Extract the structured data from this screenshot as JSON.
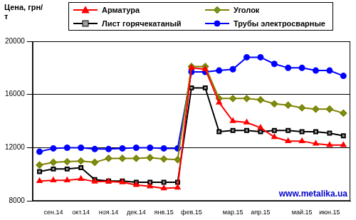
{
  "chart_data": {
    "type": "line",
    "y_label": "Цена, грн/т",
    "categories": [
      null,
      "сен.14",
      null,
      "окт.14",
      null,
      "ноя.14",
      null,
      "дек.14",
      null,
      "янв.15",
      null,
      "фев.15",
      null,
      null,
      "мар.15",
      null,
      "апр.15",
      null,
      null,
      "май.15",
      null,
      "июн.15",
      null
    ],
    "series": [
      {
        "name": "Арматура",
        "color": "#ff0000",
        "marker": "triangle",
        "values": [
          9500,
          9550,
          9550,
          9650,
          9450,
          9450,
          9400,
          9200,
          9100,
          8950,
          9000,
          18000,
          17900,
          15400,
          14000,
          13900,
          13500,
          12800,
          12500,
          12500,
          12300,
          12200,
          12200
        ]
      },
      {
        "name": "Уголок",
        "color": "#808000",
        "marker": "diamond",
        "values": [
          10700,
          10900,
          10950,
          11000,
          10900,
          11200,
          11200,
          11200,
          11250,
          11150,
          11100,
          18100,
          18100,
          15700,
          15700,
          15700,
          15600,
          15300,
          15200,
          15000,
          14900,
          14900,
          14600
        ]
      },
      {
        "name": "Лист горячекатаный",
        "color": "#000000",
        "marker": "square",
        "values": [
          10200,
          10400,
          10400,
          10500,
          9600,
          9500,
          9500,
          9400,
          9400,
          9400,
          9400,
          16500,
          16500,
          13200,
          13300,
          13300,
          13200,
          13300,
          13300,
          13200,
          13200,
          13100,
          12900
        ]
      },
      {
        "name": "Трубы электросварные",
        "color": "#0000ff",
        "marker": "circle",
        "values": [
          11700,
          11950,
          12000,
          12000,
          11900,
          11900,
          11950,
          12000,
          12000,
          11950,
          11950,
          17700,
          17700,
          17800,
          17900,
          18800,
          18800,
          18300,
          18000,
          18000,
          17800,
          17800,
          17400
        ]
      }
    ],
    "ylim": [
      8000,
      20000
    ],
    "yticks": [
      8000,
      12000,
      16000,
      20000
    ],
    "grid": true,
    "legend": "top",
    "annotations": [
      "www.metalika.ua"
    ]
  }
}
